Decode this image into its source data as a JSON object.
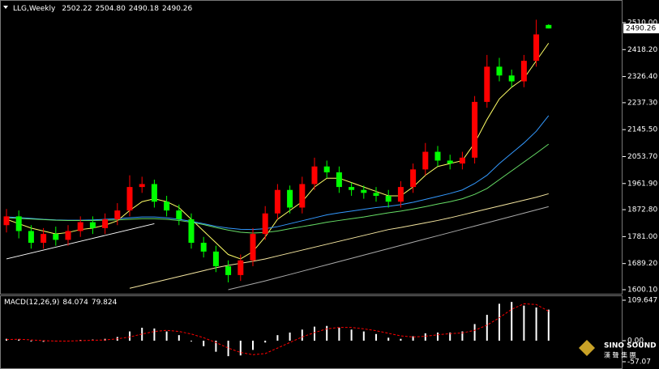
{
  "chart_data": [
    {
      "type": "candlestick",
      "title": "LLG,Weekly",
      "title_values": [
        "2502.22",
        "2504.80",
        "2490.18",
        "2490.26"
      ],
      "open": [
        1820,
        1850,
        1800,
        1760,
        1790,
        1770,
        1800,
        1830,
        1810,
        1840,
        1870,
        1950,
        1960,
        1900,
        1870,
        1840,
        1760,
        1730,
        1680,
        1650,
        1700,
        1790,
        1860,
        1940,
        1880,
        1960,
        2020,
        2000,
        1950,
        1940,
        1930,
        1920,
        1900,
        1950,
        2010,
        2070,
        2040,
        2030,
        2050,
        2240,
        2360,
        2330,
        2310,
        2380,
        2502.22
      ],
      "high": [
        1875,
        1870,
        1820,
        1810,
        1815,
        1820,
        1850,
        1850,
        1860,
        1895,
        1990,
        1985,
        1975,
        1920,
        1890,
        1860,
        1780,
        1750,
        1700,
        1720,
        1810,
        1885,
        1960,
        1955,
        1985,
        2050,
        2040,
        2020,
        1965,
        1955,
        1950,
        1940,
        1970,
        2030,
        2100,
        2090,
        2060,
        2070,
        2260,
        2400,
        2390,
        2350,
        2400,
        2520,
        2504.8
      ],
      "low": [
        1795,
        1775,
        1740,
        1740,
        1750,
        1750,
        1780,
        1790,
        1790,
        1820,
        1850,
        1930,
        1880,
        1850,
        1820,
        1740,
        1710,
        1660,
        1625,
        1630,
        1680,
        1770,
        1840,
        1860,
        1860,
        1940,
        1980,
        1930,
        1920,
        1910,
        1900,
        1880,
        1880,
        1930,
        1990,
        2020,
        2010,
        2010,
        2030,
        2220,
        2310,
        2290,
        2290,
        2360,
        2490.18
      ],
      "close": [
        1850,
        1800,
        1760,
        1790,
        1770,
        1800,
        1830,
        1810,
        1840,
        1870,
        1950,
        1960,
        1900,
        1870,
        1840,
        1760,
        1730,
        1680,
        1650,
        1700,
        1790,
        1860,
        1940,
        1880,
        1960,
        2020,
        2000,
        1950,
        1940,
        1930,
        1920,
        1900,
        1950,
        2010,
        2070,
        2040,
        2030,
        2050,
        2240,
        2360,
        2330,
        2310,
        2380,
        2470,
        2490.26
      ],
      "up_color": "#ff0000",
      "down_color": "#00ff00",
      "lines": [
        {
          "color": "#ffff66",
          "values": [
            1840,
            1825,
            1810,
            1800,
            1790,
            1795,
            1805,
            1810,
            1820,
            1835,
            1870,
            1900,
            1910,
            1900,
            1880,
            1840,
            1800,
            1760,
            1720,
            1705,
            1730,
            1780,
            1840,
            1870,
            1900,
            1950,
            1980,
            1980,
            1965,
            1950,
            1935,
            1920,
            1920,
            1950,
            1990,
            2020,
            2030,
            2040,
            2100,
            2180,
            2250,
            2290,
            2320,
            2380,
            2440
          ]
        },
        {
          "color": "#3399ff",
          "values": [
            1848,
            1846,
            1843,
            1840,
            1838,
            1837,
            1837,
            1838,
            1840,
            1842,
            1845,
            1848,
            1848,
            1845,
            1840,
            1833,
            1825,
            1816,
            1810,
            1806,
            1805,
            1808,
            1815,
            1825,
            1835,
            1845,
            1855,
            1862,
            1868,
            1874,
            1880,
            1884,
            1890,
            1898,
            1908,
            1918,
            1928,
            1940,
            1962,
            1990,
            2030,
            2065,
            2100,
            2140,
            2193
          ]
        },
        {
          "color": "#66dd66",
          "values": [
            1845,
            1843,
            1841,
            1839,
            1837,
            1836,
            1836,
            1836,
            1837,
            1838,
            1840,
            1842,
            1842,
            1840,
            1836,
            1830,
            1822,
            1812,
            1803,
            1796,
            1793,
            1795,
            1800,
            1808,
            1815,
            1822,
            1830,
            1836,
            1842,
            1848,
            1855,
            1862,
            1868,
            1875,
            1883,
            1892,
            1900,
            1910,
            1925,
            1945,
            1975,
            2005,
            2035,
            2065,
            2096
          ]
        },
        {
          "color": "#ffffff",
          "values": [
            1705,
            1715,
            1725,
            1735,
            1745,
            1755,
            1765,
            1775,
            1785,
            1795,
            1805,
            1815,
            1825,
            null,
            null,
            null,
            null,
            null,
            null,
            null,
            null,
            null,
            null,
            null,
            null,
            null,
            null,
            null,
            null,
            null,
            null,
            null,
            null,
            null,
            null,
            null,
            null,
            null,
            null,
            null,
            null,
            null,
            null,
            null,
            null
          ]
        },
        {
          "color": "#f5e6a0",
          "values": [
            null,
            null,
            null,
            null,
            null,
            null,
            null,
            null,
            null,
            null,
            1605,
            1615,
            1625,
            1635,
            1645,
            1655,
            1665,
            1675,
            1683,
            1690,
            1697,
            1705,
            1715,
            1725,
            1735,
            1745,
            1755,
            1765,
            1775,
            1785,
            1795,
            1805,
            1812,
            1820,
            1828,
            1836,
            1845,
            1855,
            1865,
            1875,
            1885,
            1895,
            1905,
            1915,
            1927
          ]
        },
        {
          "color": "#aaaaaa",
          "values": [
            null,
            null,
            null,
            null,
            null,
            null,
            null,
            null,
            null,
            null,
            null,
            null,
            null,
            null,
            null,
            null,
            null,
            null,
            1600,
            1610,
            1620,
            1630,
            1641,
            1652,
            1663,
            1674,
            1685,
            1696,
            1707,
            1718,
            1729,
            1740,
            1751,
            1762,
            1773,
            1784,
            1795,
            1806,
            1817,
            1828,
            1839,
            1850,
            1861,
            1872,
            1883
          ]
        }
      ],
      "ylim": [
        1586.3,
        2587.2
      ],
      "yticks": [
        {
          "value": 1600.1,
          "label": "1600.10"
        },
        {
          "value": 1689.2,
          "label": "1689.20"
        },
        {
          "value": 1781,
          "label": "1781.00"
        },
        {
          "value": 1872.8,
          "label": "1872.80"
        },
        {
          "value": 1961.9,
          "label": "1961.90"
        },
        {
          "value": 2053.7,
          "label": "2053.70"
        },
        {
          "value": 2145.5,
          "label": "2145.50"
        },
        {
          "value": 2237.3,
          "label": "2237.30"
        },
        {
          "value": 2326.4,
          "label": "2326.40"
        },
        {
          "value": 2418.2,
          "label": "2418.20"
        },
        {
          "value": 2510,
          "label": "2510.00"
        }
      ]
    },
    {
      "type": "macd",
      "title": "MACD(12,26,9)",
      "histogram": [
        5,
        3,
        -2,
        -3,
        -2,
        0,
        2,
        3,
        5,
        10,
        25,
        35,
        33,
        25,
        15,
        -2,
        -15,
        -30,
        -42,
        -40,
        -25,
        -5,
        15,
        22,
        30,
        38,
        40,
        35,
        30,
        25,
        18,
        8,
        5,
        12,
        20,
        22,
        22,
        25,
        45,
        70,
        100,
        105,
        95,
        90,
        84.074
      ],
      "signal": [
        3,
        4,
        2,
        0,
        -1,
        -1,
        0,
        1,
        2,
        5,
        10,
        18,
        25,
        28,
        25,
        18,
        8,
        -5,
        -20,
        -32,
        -38,
        -35,
        -20,
        -5,
        10,
        22,
        32,
        36,
        36,
        32,
        27,
        20,
        13,
        10,
        12,
        16,
        19,
        21,
        28,
        42,
        62,
        85,
        100,
        98,
        79.824
      ],
      "histogram_color": "#ffffff",
      "signal_color": "#ff0000",
      "ylim": [
        -72.4,
        122.8
      ],
      "yticks": [
        109.647,
        {
          "value": 0,
          "label": "0.00"
        },
        -57.07
      ]
    }
  ],
  "watermark": {
    "brand": "SINO SOUND",
    "subtitle": "漢 聲 集 團"
  }
}
